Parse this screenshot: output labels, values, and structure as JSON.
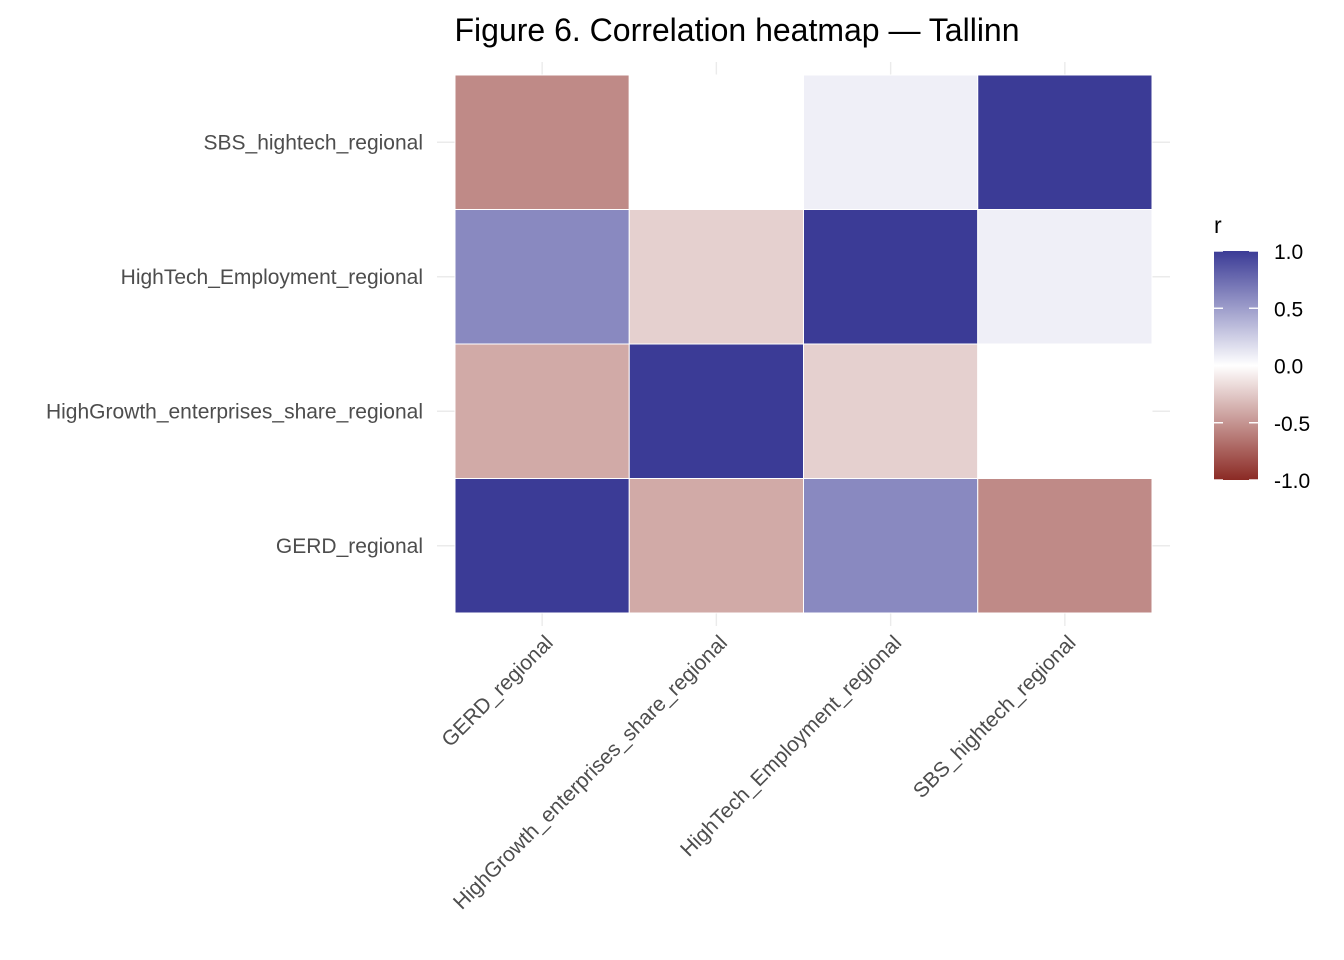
{
  "chart_data": {
    "type": "heatmap",
    "title": "Figure 6. Correlation heatmap — Tallinn",
    "xlabel": "",
    "ylabel": "",
    "x_categories": [
      "GERD_regional",
      "HighGrowth_enterprises_share_regional",
      "HighTech_Employment_regional",
      "SBS_hightech_regional"
    ],
    "y_categories": [
      "GERD_regional",
      "HighGrowth_enterprises_share_regional",
      "HighTech_Employment_regional",
      "SBS_hightech_regional"
    ],
    "matrix": [
      [
        1.0,
        -0.4,
        0.6,
        -0.55
      ],
      [
        -0.4,
        1.0,
        -0.22,
        0.0
      ],
      [
        0.6,
        -0.22,
        1.0,
        0.08
      ],
      [
        -0.55,
        0.0,
        0.08,
        1.0
      ]
    ],
    "legend": {
      "title": "r",
      "ticks": [
        "1.0",
        "0.5",
        "0.0",
        "-0.5",
        "-1.0"
      ],
      "tick_values": [
        1.0,
        0.5,
        0.0,
        -0.5,
        -1.0
      ],
      "range": [
        -1,
        1
      ],
      "colors": {
        "low": "#8b2a24",
        "mid": "#ffffff",
        "high": "#3b3b96"
      },
      "placement": "right"
    },
    "grid": true
  }
}
